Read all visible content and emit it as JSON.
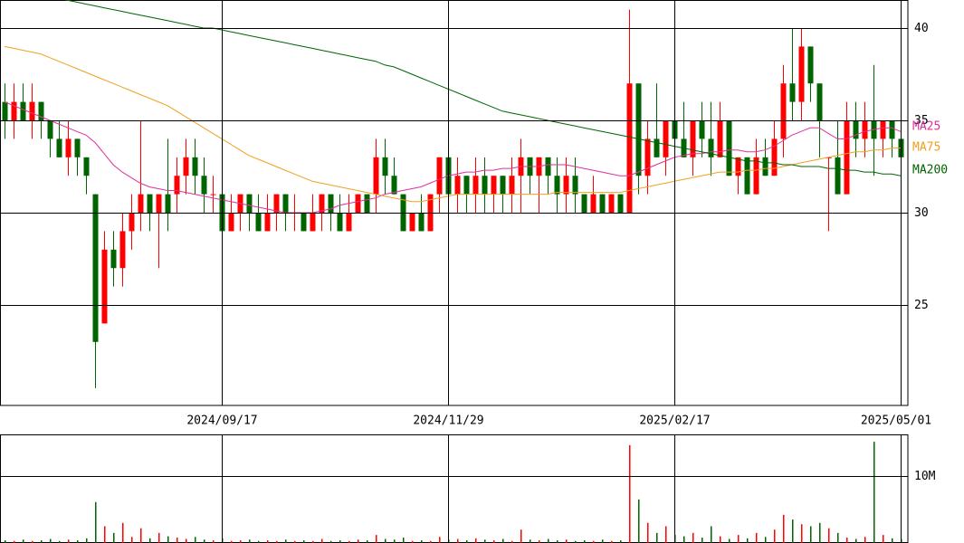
{
  "chart_data": {
    "type": "candlestick",
    "categories": [
      null,
      null,
      null,
      null,
      null,
      null,
      null,
      null,
      null,
      null,
      null,
      null,
      null,
      null,
      null,
      null,
      null,
      null,
      null,
      null,
      null,
      null,
      null,
      null,
      "2024/09/17",
      null,
      null,
      null,
      null,
      null,
      null,
      null,
      null,
      null,
      null,
      null,
      null,
      null,
      null,
      null,
      null,
      null,
      null,
      null,
      null,
      null,
      null,
      null,
      null,
      "2024/11/29",
      null,
      null,
      null,
      null,
      null,
      null,
      null,
      null,
      null,
      null,
      null,
      null,
      null,
      null,
      null,
      null,
      null,
      null,
      null,
      null,
      null,
      null,
      null,
      null,
      "2025/02/17",
      null,
      null,
      null,
      null,
      null,
      null,
      null,
      null,
      null,
      null,
      null,
      null,
      null,
      null,
      null,
      null,
      null,
      null,
      null,
      null,
      null,
      null,
      null,
      null,
      "2025/05/01"
    ],
    "candles": [
      [
        36,
        37,
        34,
        35
      ],
      [
        35,
        37,
        34,
        36
      ],
      [
        36,
        37,
        35,
        35
      ],
      [
        35,
        37,
        34,
        36
      ],
      [
        36,
        36,
        34,
        35
      ],
      [
        35,
        35,
        33,
        34
      ],
      [
        34,
        35,
        33,
        33
      ],
      [
        33,
        35,
        32,
        34
      ],
      [
        34,
        34,
        32,
        33
      ],
      [
        33,
        33,
        31,
        32
      ],
      [
        31,
        31,
        20.5,
        23
      ],
      [
        24,
        29,
        24,
        28
      ],
      [
        28,
        29,
        26,
        27
      ],
      [
        27,
        30,
        26,
        29
      ],
      [
        29,
        31,
        28,
        30
      ],
      [
        30,
        35,
        29,
        31
      ],
      [
        31,
        31,
        29,
        30
      ],
      [
        30,
        31,
        27,
        31
      ],
      [
        31,
        34,
        29,
        30
      ],
      [
        31,
        33,
        30,
        32
      ],
      [
        32,
        34,
        31,
        33
      ],
      [
        33,
        34,
        31,
        32
      ],
      [
        32,
        33,
        30,
        31
      ],
      [
        31,
        32,
        30,
        31
      ],
      [
        31,
        31,
        28,
        29
      ],
      [
        29,
        31,
        29,
        30
      ],
      [
        30,
        31,
        29,
        31
      ],
      [
        31,
        31,
        29,
        30
      ],
      [
        30,
        31,
        29,
        29
      ],
      [
        29,
        31,
        29,
        30
      ],
      [
        30,
        31,
        29,
        31
      ],
      [
        31,
        31,
        29,
        30
      ],
      [
        30,
        31,
        29,
        30
      ],
      [
        30,
        30,
        29,
        29
      ],
      [
        29,
        31,
        29,
        30
      ],
      [
        30,
        31,
        29,
        31
      ],
      [
        31,
        31,
        29,
        30
      ],
      [
        30,
        31,
        29,
        29
      ],
      [
        29,
        31,
        29,
        30
      ],
      [
        30,
        31,
        30,
        31
      ],
      [
        31,
        31,
        30,
        30
      ],
      [
        31,
        34,
        30,
        33
      ],
      [
        33,
        34,
        31,
        32
      ],
      [
        32,
        33,
        31,
        31
      ],
      [
        31,
        31,
        29,
        29
      ],
      [
        29,
        30,
        29,
        30
      ],
      [
        30,
        31,
        29,
        29
      ],
      [
        29,
        31,
        29,
        31
      ],
      [
        31,
        33,
        30,
        33
      ],
      [
        33,
        33,
        30,
        31
      ],
      [
        31,
        33,
        30,
        32
      ],
      [
        32,
        32,
        30,
        31
      ],
      [
        31,
        33,
        30,
        32
      ],
      [
        32,
        33,
        30,
        31
      ],
      [
        31,
        32,
        30,
        32
      ],
      [
        32,
        32,
        30,
        31
      ],
      [
        31,
        33,
        30,
        32
      ],
      [
        32,
        34,
        30,
        33
      ],
      [
        33,
        33,
        31,
        32
      ],
      [
        32,
        33,
        30,
        33
      ],
      [
        33,
        33,
        31,
        32
      ],
      [
        32,
        33,
        30,
        31
      ],
      [
        31,
        33,
        30,
        32
      ],
      [
        32,
        33,
        30,
        31
      ],
      [
        31,
        31,
        30,
        30
      ],
      [
        30,
        32,
        30,
        31
      ],
      [
        31,
        31,
        30,
        30
      ],
      [
        30,
        31,
        30,
        31
      ],
      [
        31,
        31,
        30,
        30
      ],
      [
        30,
        41,
        30,
        37
      ],
      [
        37,
        37,
        31,
        32
      ],
      [
        32,
        35,
        31,
        34
      ],
      [
        34,
        37,
        33,
        33
      ],
      [
        33,
        35,
        32,
        35
      ],
      [
        35,
        35,
        33,
        34
      ],
      [
        34,
        36,
        33,
        33
      ],
      [
        33,
        35,
        32,
        35
      ],
      [
        35,
        36,
        33,
        34
      ],
      [
        34,
        36,
        32,
        33
      ],
      [
        33,
        36,
        33,
        35
      ],
      [
        35,
        35,
        32,
        32
      ],
      [
        32,
        33,
        31,
        33
      ],
      [
        33,
        33,
        31,
        31
      ],
      [
        31,
        34,
        31,
        33
      ],
      [
        33,
        34,
        32,
        32
      ],
      [
        32,
        35,
        32,
        34
      ],
      [
        34,
        38,
        33,
        37
      ],
      [
        37,
        40,
        35,
        36
      ],
      [
        36,
        40,
        35,
        39
      ],
      [
        39,
        39,
        36,
        37
      ],
      [
        37,
        37,
        33,
        35
      ],
      [
        33,
        33,
        29,
        33
      ],
      [
        33,
        35,
        31,
        31
      ],
      [
        31,
        36,
        31,
        35
      ],
      [
        35,
        36,
        33,
        34
      ],
      [
        34,
        36,
        33,
        35
      ],
      [
        35,
        38,
        32,
        34
      ],
      [
        34,
        35,
        33,
        35
      ],
      [
        35,
        35,
        33,
        34
      ],
      [
        34,
        34,
        33,
        33
      ]
    ],
    "up_color": "#ff0000",
    "down_color": "#006400",
    "series": [
      {
        "name": "MA25",
        "color": "#e0309a",
        "values": [
          36,
          35.8,
          35.6,
          35.4,
          35.2,
          35,
          34.8,
          34.6,
          34.4,
          34.2,
          33.8,
          33.2,
          32.6,
          32.2,
          31.9,
          31.6,
          31.4,
          31.3,
          31.2,
          31.2,
          31.1,
          31,
          30.9,
          30.8,
          30.7,
          30.6,
          30.5,
          30.4,
          30.3,
          30.2,
          30.1,
          30,
          30,
          30,
          30,
          30.1,
          30.2,
          30.4,
          30.5,
          30.6,
          30.7,
          30.8,
          31,
          31.1,
          31.2,
          31.3,
          31.4,
          31.6,
          31.8,
          32,
          32.1,
          32.2,
          32.2,
          32.3,
          32.3,
          32.4,
          32.4,
          32.5,
          32.5,
          32.5,
          32.6,
          32.6,
          32.6,
          32.5,
          32.4,
          32.3,
          32.2,
          32.1,
          32,
          32,
          32.2,
          32.4,
          32.6,
          32.8,
          33,
          33.1,
          33.2,
          33.2,
          33.3,
          33.3,
          33.4,
          33.4,
          33.3,
          33.3,
          33.4,
          33.6,
          33.9,
          34.2,
          34.4,
          34.6,
          34.6,
          34.3,
          34,
          34,
          34.2,
          34.4,
          34.5,
          34.6,
          34.6,
          34.4
        ]
      },
      {
        "name": "MA75",
        "color": "#f0a020",
        "values": [
          39,
          38.9,
          38.8,
          38.7,
          38.6,
          38.4,
          38.2,
          38,
          37.8,
          37.6,
          37.4,
          37.2,
          37,
          36.8,
          36.6,
          36.4,
          36.2,
          36,
          35.8,
          35.5,
          35.2,
          34.9,
          34.6,
          34.3,
          34,
          33.7,
          33.4,
          33.1,
          32.9,
          32.7,
          32.5,
          32.3,
          32.1,
          31.9,
          31.7,
          31.6,
          31.5,
          31.4,
          31.3,
          31.2,
          31.1,
          31,
          30.9,
          30.8,
          30.7,
          30.6,
          30.6,
          30.7,
          30.8,
          30.9,
          31,
          31,
          31,
          31,
          31,
          31,
          31,
          31,
          31,
          31,
          31,
          31.1,
          31.1,
          31.1,
          31.1,
          31.1,
          31.1,
          31.1,
          31.1,
          31.2,
          31.3,
          31.4,
          31.5,
          31.6,
          31.7,
          31.8,
          31.9,
          32,
          32.1,
          32.2,
          32.2,
          32.2,
          32.3,
          32.3,
          32.4,
          32.4,
          32.5,
          32.6,
          32.7,
          32.8,
          32.9,
          33,
          33.1,
          33.2,
          33.3,
          33.3,
          33.4,
          33.4,
          33.5,
          33.5
        ]
      },
      {
        "name": "MA200",
        "color": "#006400",
        "values": [
          42.2,
          42.1,
          42,
          41.9,
          41.8,
          41.7,
          41.6,
          41.5,
          41.4,
          41.3,
          41.2,
          41.1,
          41,
          40.9,
          40.8,
          40.7,
          40.6,
          40.5,
          40.4,
          40.3,
          40.2,
          40.1,
          40,
          40,
          39.9,
          39.8,
          39.7,
          39.6,
          39.5,
          39.4,
          39.3,
          39.2,
          39.1,
          39,
          38.9,
          38.8,
          38.7,
          38.6,
          38.5,
          38.4,
          38.3,
          38.2,
          38,
          37.9,
          37.7,
          37.5,
          37.3,
          37.1,
          36.9,
          36.7,
          36.5,
          36.3,
          36.1,
          35.9,
          35.7,
          35.5,
          35.4,
          35.3,
          35.2,
          35.1,
          35,
          34.9,
          34.8,
          34.7,
          34.6,
          34.5,
          34.4,
          34.3,
          34.2,
          34.1,
          34,
          33.9,
          33.8,
          33.7,
          33.6,
          33.5,
          33.4,
          33.3,
          33.2,
          33.1,
          33,
          32.9,
          32.8,
          32.8,
          32.7,
          32.7,
          32.6,
          32.6,
          32.5,
          32.5,
          32.5,
          32.4,
          32.4,
          32.3,
          32.3,
          32.2,
          32.2,
          32.1,
          32.1,
          32
        ]
      }
    ],
    "ylim": [
      19.56,
      41.52
    ],
    "yticks": [
      25,
      30,
      35,
      40
    ],
    "volume": [
      400000,
      300000,
      500000,
      300000,
      400000,
      600000,
      300000,
      500000,
      400000,
      700000,
      6100000,
      2500000,
      1500000,
      3000000,
      900000,
      2200000,
      700000,
      1500000,
      1000000,
      800000,
      600000,
      900000,
      500000,
      400000,
      700000,
      300000,
      400000,
      500000,
      300000,
      400000,
      300000,
      500000,
      300000,
      400000,
      300000,
      600000,
      300000,
      400000,
      300000,
      500000,
      400000,
      1200000,
      600000,
      500000,
      800000,
      300000,
      400000,
      300000,
      900000,
      500000,
      600000,
      400000,
      700000,
      500000,
      400000,
      600000,
      300000,
      2000000,
      500000,
      400000,
      600000,
      400000,
      500000,
      300000,
      400000,
      300000,
      500000,
      300000,
      400000,
      14600000,
      6500000,
      3000000,
      1500000,
      2500000,
      1200000,
      1000000,
      1500000,
      800000,
      2500000,
      1000000,
      600000,
      1200000,
      700000,
      1500000,
      900000,
      2000000,
      4200000,
      3500000,
      2800000,
      2500000,
      3000000,
      2200000,
      1500000,
      800000,
      600000,
      900000,
      15100000,
      1200000,
      700000,
      600000
    ],
    "volume_ylim": [
      0,
      16200000
    ],
    "volume_yticks": [
      {
        "value": 10000000,
        "label": "10M"
      }
    ]
  }
}
